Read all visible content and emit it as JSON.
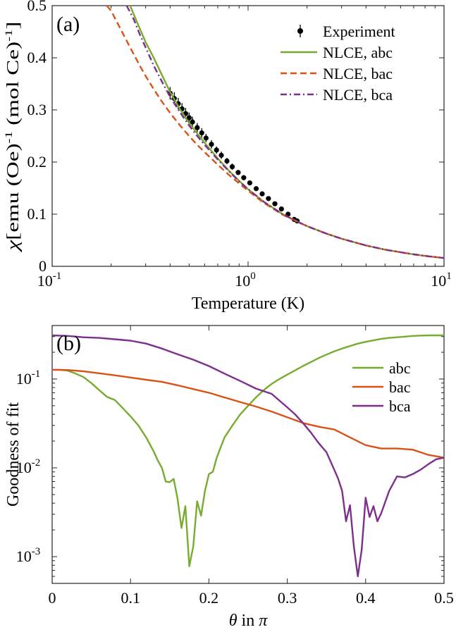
{
  "chart_data": [
    {
      "type": "line",
      "panel_label": "(a)",
      "xlabel": "Temperature (K)",
      "ylabel": "χ [emu (Oe)⁻¹ (mol Ce)⁻¹]",
      "ylabel_parts": {
        "chi": "χ",
        "text": "[emu (Oe)",
        "sup1": "-1",
        "text2": " (mol Ce)",
        "sup2": "-1",
        "end": "]"
      },
      "xscale": "log",
      "xlim": [
        0.1,
        10
      ],
      "ylim": [
        0,
        0.5
      ],
      "xticks": [
        0.1,
        1,
        10
      ],
      "xtick_labels": [
        {
          "base": "10",
          "exp": "-1"
        },
        {
          "base": "10",
          "exp": "0"
        },
        {
          "base": "10",
          "exp": "1"
        }
      ],
      "yticks": [
        0,
        0.1,
        0.2,
        0.3,
        0.4,
        0.5
      ],
      "ytick_labels": [
        "0",
        "0.1",
        "0.2",
        "0.3",
        "0.4",
        "0.5"
      ],
      "legend_position": "top-right",
      "series": [
        {
          "name": "Experiment",
          "color": "#000000",
          "style": "errorbar-markers",
          "x": [
            0.4,
            0.42,
            0.44,
            0.46,
            0.48,
            0.5,
            0.52,
            0.55,
            0.58,
            0.61,
            0.65,
            0.69,
            0.73,
            0.78,
            0.83,
            0.89,
            0.95,
            1.02,
            1.1,
            1.18,
            1.27,
            1.37,
            1.48,
            1.6,
            1.72,
            1.78
          ],
          "y": [
            0.332,
            0.322,
            0.312,
            0.302,
            0.293,
            0.285,
            0.277,
            0.266,
            0.256,
            0.246,
            0.234,
            0.223,
            0.213,
            0.202,
            0.191,
            0.18,
            0.17,
            0.16,
            0.149,
            0.139,
            0.13,
            0.12,
            0.11,
            0.1,
            0.09,
            0.087
          ],
          "err": [
            0.012,
            0.012,
            0.011,
            0.011,
            0.011,
            0.01,
            0.01,
            0.009,
            0.009,
            0.008,
            0.008,
            0.007,
            0.007,
            0.006,
            0.006,
            0.005,
            0.005,
            0.004,
            0.004,
            0.004,
            0.003,
            0.003,
            0.003,
            0.003,
            0.002,
            0.002
          ]
        },
        {
          "name": "NLCE, abc",
          "color": "#77AC30",
          "style": "solid",
          "x": [
            0.25,
            0.27,
            0.3,
            0.33,
            0.36,
            0.4,
            0.45,
            0.5,
            0.55,
            0.6,
            0.7,
            0.8,
            0.9,
            1.0,
            1.2,
            1.5,
            1.8,
            2.0,
            2.5,
            3.0,
            4.0,
            5.0,
            6.0,
            7.0,
            8.0,
            10.0
          ],
          "y": [
            0.505,
            0.47,
            0.43,
            0.4,
            0.37,
            0.334,
            0.301,
            0.275,
            0.255,
            0.237,
            0.207,
            0.183,
            0.164,
            0.148,
            0.124,
            0.1,
            0.085,
            0.077,
            0.063,
            0.053,
            0.04,
            0.032,
            0.027,
            0.023,
            0.02,
            0.016
          ]
        },
        {
          "name": "NLCE, bac",
          "color": "#D95319",
          "style": "dashed",
          "x": [
            0.19,
            0.2,
            0.22,
            0.25,
            0.28,
            0.3,
            0.33,
            0.36,
            0.4,
            0.45,
            0.5,
            0.55,
            0.6,
            0.7,
            0.8,
            0.9,
            1.0,
            1.2,
            1.5,
            1.8,
            2.0,
            2.5,
            3.0,
            4.0,
            5.0,
            6.0,
            7.0,
            8.0,
            10.0
          ],
          "y": [
            0.505,
            0.49,
            0.46,
            0.42,
            0.385,
            0.365,
            0.34,
            0.318,
            0.294,
            0.27,
            0.25,
            0.233,
            0.219,
            0.195,
            0.175,
            0.159,
            0.145,
            0.122,
            0.099,
            0.085,
            0.077,
            0.063,
            0.053,
            0.04,
            0.032,
            0.027,
            0.023,
            0.02,
            0.016
          ]
        },
        {
          "name": "NLCE, bca",
          "color": "#7E2F8E",
          "style": "dashdot",
          "x": [
            0.24,
            0.26,
            0.28,
            0.3,
            0.33,
            0.36,
            0.4,
            0.45,
            0.5,
            0.55,
            0.6,
            0.7,
            0.8,
            0.9,
            1.0,
            1.2,
            1.5,
            1.8,
            2.0,
            2.5,
            3.0,
            4.0,
            5.0,
            6.0,
            7.0,
            8.0,
            10.0
          ],
          "y": [
            0.505,
            0.475,
            0.445,
            0.42,
            0.385,
            0.357,
            0.325,
            0.295,
            0.27,
            0.25,
            0.233,
            0.205,
            0.182,
            0.163,
            0.148,
            0.124,
            0.1,
            0.085,
            0.077,
            0.063,
            0.053,
            0.04,
            0.032,
            0.027,
            0.023,
            0.02,
            0.016
          ]
        }
      ]
    },
    {
      "type": "line",
      "panel_label": "(b)",
      "xlabel_parts": {
        "theta": "θ",
        "text": " in ",
        "pi": "π"
      },
      "xlabel": "θ in π",
      "ylabel": "Goodness of fit",
      "yscale": "log",
      "xlim": [
        0,
        0.5
      ],
      "ylim": [
        0.0005,
        0.4
      ],
      "xticks": [
        0,
        0.1,
        0.2,
        0.3,
        0.4,
        0.5
      ],
      "xtick_labels": [
        "0",
        "0.1",
        "0.2",
        "0.3",
        "0.4",
        "0.5"
      ],
      "yticks": [
        0.001,
        0.01,
        0.1
      ],
      "ytick_labels": [
        {
          "base": "10",
          "exp": "-3"
        },
        {
          "base": "10",
          "exp": "-2"
        },
        {
          "base": "10",
          "exp": "-1"
        }
      ],
      "legend_position": "top-right",
      "series": [
        {
          "name": "abc",
          "color": "#77AC30",
          "x": [
            0,
            0.01,
            0.02,
            0.03,
            0.04,
            0.05,
            0.06,
            0.07,
            0.08,
            0.09,
            0.1,
            0.11,
            0.12,
            0.13,
            0.135,
            0.14,
            0.145,
            0.15,
            0.155,
            0.16,
            0.165,
            0.17,
            0.175,
            0.18,
            0.185,
            0.19,
            0.195,
            0.2,
            0.205,
            0.21,
            0.215,
            0.22,
            0.23,
            0.24,
            0.25,
            0.26,
            0.27,
            0.28,
            0.29,
            0.3,
            0.31,
            0.32,
            0.33,
            0.34,
            0.35,
            0.36,
            0.37,
            0.38,
            0.39,
            0.4,
            0.41,
            0.42,
            0.43,
            0.44,
            0.45,
            0.46,
            0.47,
            0.48,
            0.49,
            0.5
          ],
          "y": [
            0.127,
            0.127,
            0.124,
            0.115,
            0.105,
            0.09,
            0.075,
            0.063,
            0.058,
            0.047,
            0.038,
            0.03,
            0.022,
            0.015,
            0.012,
            0.01,
            0.007,
            0.0069,
            0.0075,
            0.0045,
            0.0021,
            0.0037,
            0.00078,
            0.0013,
            0.0042,
            0.0029,
            0.0055,
            0.0085,
            0.009,
            0.013,
            0.017,
            0.022,
            0.03,
            0.04,
            0.05,
            0.062,
            0.075,
            0.088,
            0.1,
            0.112,
            0.125,
            0.14,
            0.155,
            0.172,
            0.188,
            0.205,
            0.22,
            0.235,
            0.25,
            0.262,
            0.272,
            0.283,
            0.29,
            0.295,
            0.3,
            0.305,
            0.308,
            0.31,
            0.31,
            0.31
          ]
        },
        {
          "name": "bac",
          "color": "#D95319",
          "x": [
            0,
            0.02,
            0.04,
            0.06,
            0.08,
            0.1,
            0.12,
            0.14,
            0.16,
            0.18,
            0.2,
            0.22,
            0.24,
            0.26,
            0.28,
            0.3,
            0.32,
            0.34,
            0.36,
            0.38,
            0.4,
            0.42,
            0.44,
            0.46,
            0.48,
            0.5
          ],
          "y": [
            0.127,
            0.126,
            0.122,
            0.116,
            0.11,
            0.104,
            0.098,
            0.093,
            0.085,
            0.077,
            0.07,
            0.062,
            0.055,
            0.049,
            0.043,
            0.037,
            0.032,
            0.029,
            0.027,
            0.022,
            0.018,
            0.0165,
            0.0165,
            0.016,
            0.014,
            0.013
          ]
        },
        {
          "name": "bca",
          "color": "#7E2F8E",
          "x": [
            0,
            0.02,
            0.04,
            0.06,
            0.08,
            0.1,
            0.12,
            0.14,
            0.16,
            0.18,
            0.2,
            0.22,
            0.24,
            0.26,
            0.28,
            0.3,
            0.31,
            0.32,
            0.33,
            0.34,
            0.35,
            0.36,
            0.365,
            0.37,
            0.375,
            0.38,
            0.385,
            0.39,
            0.395,
            0.4,
            0.405,
            0.41,
            0.415,
            0.42,
            0.43,
            0.44,
            0.45,
            0.46,
            0.47,
            0.48,
            0.49,
            0.5
          ],
          "y": [
            0.31,
            0.305,
            0.295,
            0.29,
            0.28,
            0.27,
            0.25,
            0.22,
            0.19,
            0.165,
            0.14,
            0.115,
            0.095,
            0.078,
            0.068,
            0.048,
            0.04,
            0.032,
            0.025,
            0.019,
            0.015,
            0.0095,
            0.0075,
            0.0055,
            0.0025,
            0.0038,
            0.0013,
            0.0006,
            0.0012,
            0.0046,
            0.0028,
            0.0037,
            0.0025,
            0.0031,
            0.0055,
            0.008,
            0.0078,
            0.0085,
            0.0095,
            0.011,
            0.0125,
            0.013
          ]
        }
      ]
    }
  ]
}
